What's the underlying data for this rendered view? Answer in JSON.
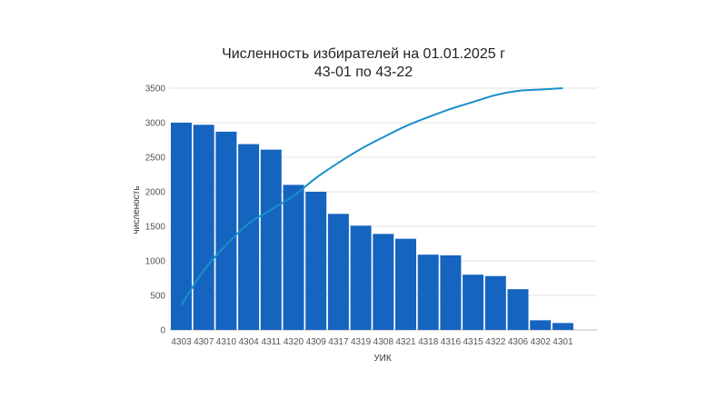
{
  "chart_data": {
    "type": "bar",
    "title": "Численность избирателей на 01.01.2025 г",
    "subtitle": "43-01 по 43-22",
    "xlabel": "УИК",
    "ylabel": "численость",
    "ylim": [
      0,
      3500
    ],
    "yticks": [
      0,
      500,
      1000,
      1500,
      2000,
      2500,
      3000,
      3500
    ],
    "grid": true,
    "legend": "none",
    "categories": [
      "4303",
      "4307",
      "4310",
      "4304",
      "4311",
      "4320",
      "4309",
      "4317",
      "4319",
      "4308",
      "4321",
      "4318",
      "4316",
      "4315",
      "4322",
      "4306",
      "4302",
      "4301"
    ],
    "series": [
      {
        "type": "bar",
        "color": "#1565c0",
        "values": [
          3000,
          2970,
          2870,
          2690,
          2610,
          2100,
          2000,
          1680,
          1510,
          1390,
          1320,
          1090,
          1080,
          800,
          780,
          590,
          140,
          100
        ]
      },
      {
        "type": "line",
        "color": "#1a8fc9",
        "values": [
          360,
          860,
          1230,
          1540,
          1740,
          1940,
          2200,
          2420,
          2620,
          2790,
          2950,
          3080,
          3200,
          3300,
          3400,
          3460,
          3480,
          3500
        ]
      }
    ]
  }
}
